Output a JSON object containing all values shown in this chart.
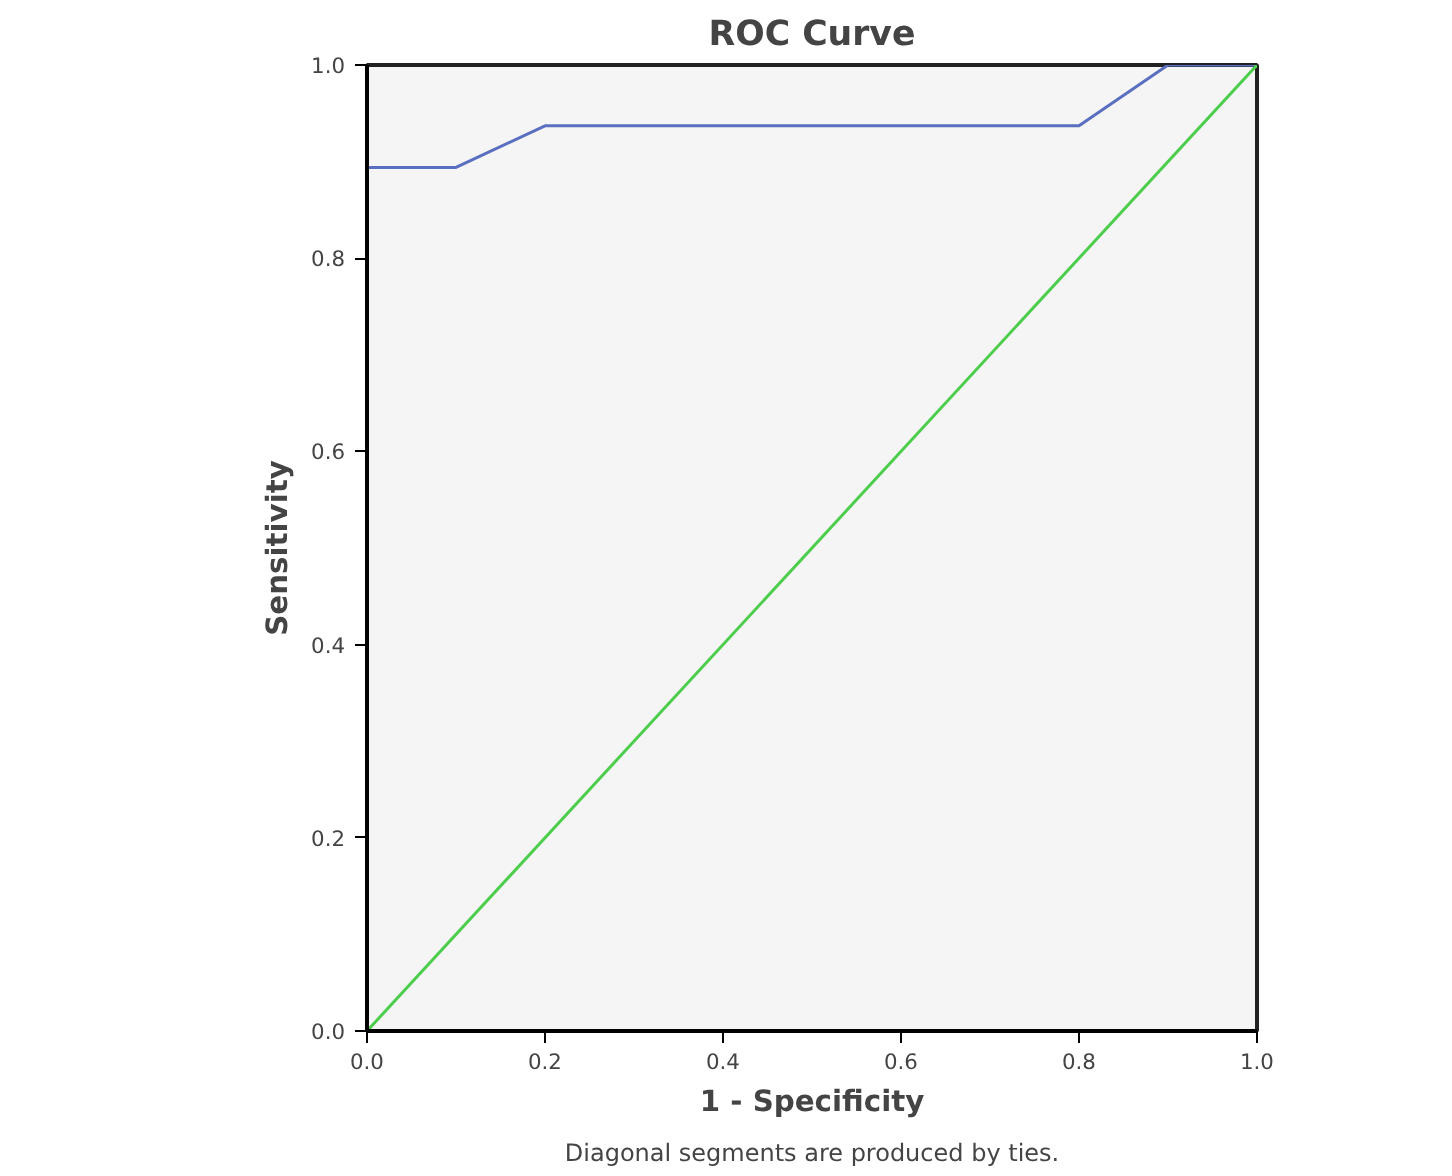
{
  "chart_data": {
    "type": "line",
    "title": "ROC Curve",
    "xlabel": "1 - Specificity",
    "ylabel": "Sensitivity",
    "x": [
      0,
      0,
      0.1,
      0.2,
      0.8,
      0.9,
      1
    ],
    "series": [
      {
        "color": "#5a6fc0",
        "values": [
          0,
          0.894,
          0.894,
          0.937,
          0.937,
          1,
          1
        ]
      },
      {
        "color": "#4ccd4c",
        "x": [
          0,
          1
        ],
        "values": [
          0,
          1
        ]
      }
    ],
    "xlim": [
      0,
      1
    ],
    "ylim": [
      0,
      1
    ],
    "xticks": [
      {
        "value": 0,
        "label": "0.0"
      },
      0.2,
      0.4,
      0.6,
      0.8,
      {
        "value": 1,
        "label": "1.0"
      }
    ],
    "yticks": [
      {
        "value": 0,
        "label": "0.0"
      },
      0.2,
      0.4,
      0.6,
      0.8,
      {
        "value": 1,
        "label": "1.0"
      }
    ],
    "annotations": [
      "Diagonal segments are produced by ties."
    ]
  }
}
